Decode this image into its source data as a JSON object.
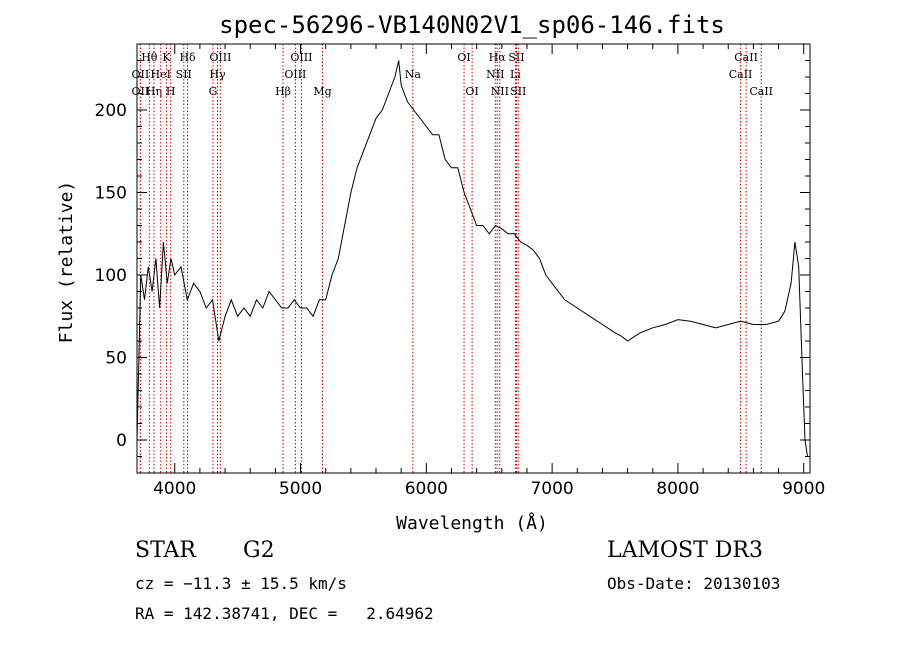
{
  "chart_data": {
    "type": "line",
    "title": "spec-56296-VB140N02V1_sp06-146.fits",
    "xlabel": "Wavelength (Å)",
    "ylabel": "Flux (relative)",
    "xlim": [
      3700,
      9050
    ],
    "ylim": [
      -20,
      240
    ],
    "xticks": [
      4000,
      5000,
      6000,
      7000,
      8000,
      9000
    ],
    "yticks": [
      0,
      50,
      100,
      150,
      200
    ],
    "grid": false,
    "line_color": "#000000",
    "marker_color": "#c00000",
    "series": [
      {
        "x": [
          3700,
          3730,
          3760,
          3790,
          3820,
          3850,
          3880,
          3910,
          3940,
          3970,
          4000,
          4050,
          4100,
          4150,
          4200,
          4250,
          4300,
          4350,
          4400,
          4450,
          4500,
          4550,
          4600,
          4650,
          4700,
          4750,
          4800,
          4850,
          4900,
          4950,
          5000,
          5050,
          5100,
          5150,
          5200,
          5250,
          5300,
          5350,
          5400,
          5450,
          5500,
          5550,
          5600,
          5650,
          5700,
          5750,
          5780,
          5800,
          5850,
          5900,
          5950,
          6000,
          6050,
          6100,
          6150,
          6200,
          6250,
          6300,
          6350,
          6400,
          6450,
          6500,
          6550,
          6600,
          6650,
          6700,
          6750,
          6800,
          6850,
          6900,
          6950,
          7000,
          7100,
          7200,
          7300,
          7400,
          7500,
          7550,
          7600,
          7700,
          7800,
          7900,
          8000,
          8100,
          8200,
          8300,
          8400,
          8500,
          8600,
          8700,
          8800,
          8850,
          8900,
          8930,
          8960,
          8990,
          9010,
          9030
        ],
        "y": [
          0,
          100,
          85,
          105,
          90,
          110,
          80,
          120,
          95,
          110,
          100,
          105,
          85,
          95,
          90,
          80,
          85,
          60,
          75,
          85,
          75,
          80,
          75,
          85,
          80,
          90,
          85,
          80,
          80,
          85,
          80,
          80,
          75,
          85,
          85,
          100,
          110,
          130,
          150,
          165,
          175,
          185,
          195,
          200,
          210,
          220,
          230,
          215,
          205,
          200,
          195,
          190,
          185,
          185,
          170,
          165,
          165,
          150,
          140,
          130,
          130,
          125,
          130,
          128,
          125,
          125,
          120,
          118,
          115,
          110,
          100,
          95,
          85,
          80,
          75,
          70,
          65,
          63,
          60,
          65,
          68,
          70,
          73,
          72,
          70,
          68,
          70,
          72,
          70,
          70,
          72,
          78,
          95,
          120,
          105,
          40,
          0,
          -10
        ]
      }
    ],
    "spectral_lines": [
      {
        "label": "Hθ",
        "wavelength": 3798,
        "row": 1
      },
      {
        "label": "OII",
        "wavelength": 3727,
        "row": 2
      },
      {
        "label": "OII",
        "wavelength": 3727,
        "row": 3
      },
      {
        "label": "Hη",
        "wavelength": 3835,
        "row": 3
      },
      {
        "label": "K",
        "wavelength": 3934,
        "row": 1
      },
      {
        "label": "HeI",
        "wavelength": 3889,
        "row": 2
      },
      {
        "label": "SII",
        "wavelength": 4072,
        "row": 2
      },
      {
        "label": "H",
        "wavelength": 3968,
        "row": 3
      },
      {
        "label": "Hδ",
        "wavelength": 4102,
        "row": 1
      },
      {
        "label": "OIII",
        "wavelength": 4363,
        "row": 1
      },
      {
        "label": "Hγ",
        "wavelength": 4340,
        "row": 2
      },
      {
        "label": "G",
        "wavelength": 4304,
        "row": 3
      },
      {
        "label": "Hβ",
        "wavelength": 4861,
        "row": 3
      },
      {
        "label": "OIII",
        "wavelength": 5007,
        "row": 1
      },
      {
        "label": "OIII",
        "wavelength": 4959,
        "row": 2
      },
      {
        "label": "Mg",
        "wavelength": 5175,
        "row": 3
      },
      {
        "label": "Na",
        "wavelength": 5893,
        "row": 2
      },
      {
        "label": "OI",
        "wavelength": 6300,
        "row": 1
      },
      {
        "label": "OI",
        "wavelength": 6364,
        "row": 3
      },
      {
        "label": "Hα",
        "wavelength": 6563,
        "row": 1
      },
      {
        "label": "NII",
        "wavelength": 6548,
        "row": 2
      },
      {
        "label": "NII",
        "wavelength": 6584,
        "row": 3
      },
      {
        "label": "SII",
        "wavelength": 6717,
        "row": 1
      },
      {
        "label": "Li",
        "wavelength": 6708,
        "row": 2
      },
      {
        "label": "SII",
        "wavelength": 6731,
        "row": 3
      },
      {
        "label": "CaII",
        "wavelength": 8542,
        "row": 1
      },
      {
        "label": "CaII",
        "wavelength": 8498,
        "row": 2
      },
      {
        "label": "CaII",
        "wavelength": 8662,
        "row": 3
      }
    ]
  },
  "footer": {
    "class_label": "STAR",
    "subclass": "G2",
    "survey": "LAMOST DR3",
    "redshift_text": "cz = −11.3 ± 15.5 km/s",
    "obs_date": "Obs-Date: 20130103",
    "coords": "RA = 142.38741, DEC =   2.64962"
  }
}
